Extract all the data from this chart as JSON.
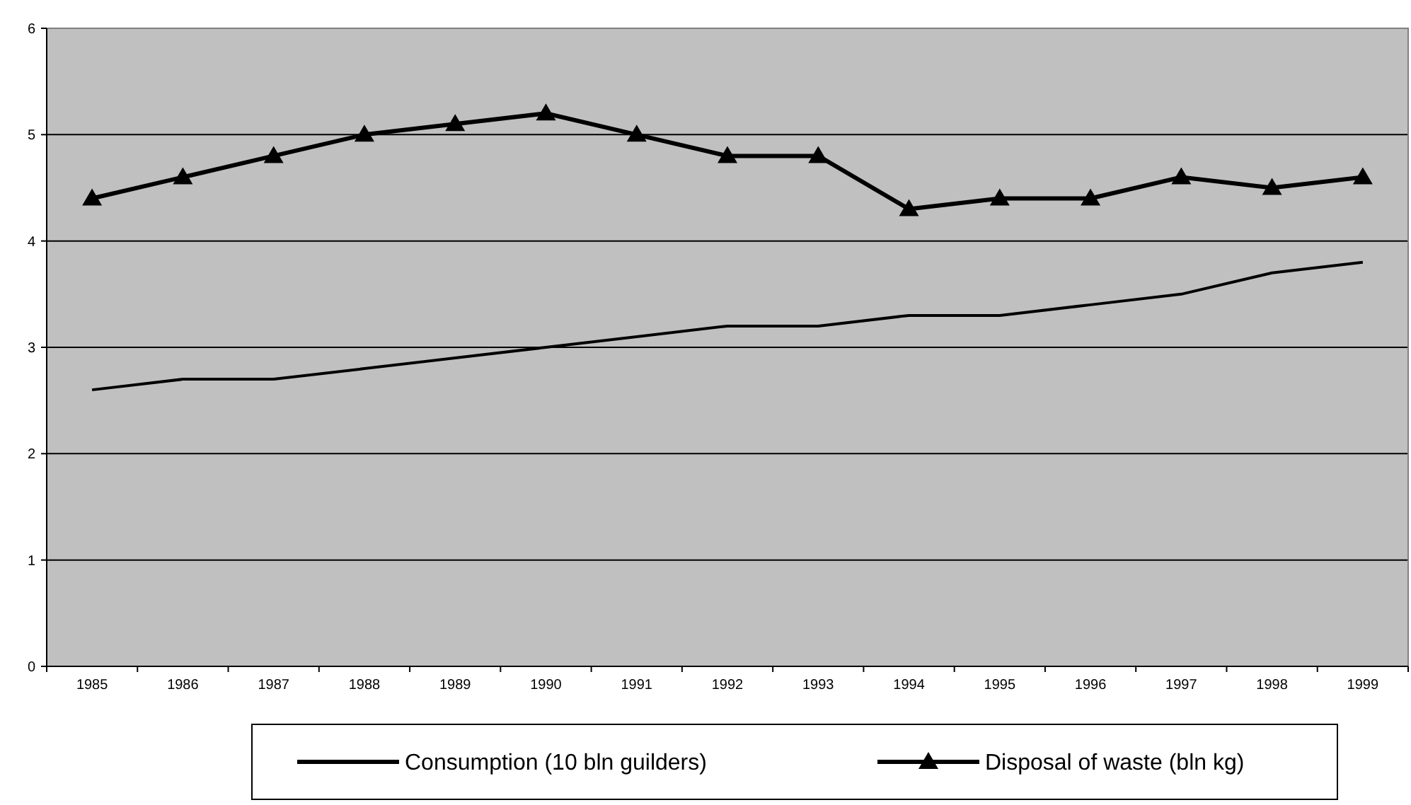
{
  "chart_data": {
    "type": "line",
    "categories": [
      "1985",
      "1986",
      "1987",
      "1988",
      "1989",
      "1990",
      "1991",
      "1992",
      "1993",
      "1994",
      "1995",
      "1996",
      "1997",
      "1998",
      "1999"
    ],
    "series": [
      {
        "name": "Consumption (10 bln guilders)",
        "color": "#000000",
        "marker": "none",
        "values": [
          2.6,
          2.7,
          2.7,
          2.8,
          2.9,
          3.0,
          3.1,
          3.2,
          3.2,
          3.3,
          3.3,
          3.4,
          3.5,
          3.7,
          3.8
        ]
      },
      {
        "name": "Disposal of waste (bln kg)",
        "color": "#000000",
        "marker": "triangle",
        "values": [
          4.4,
          4.6,
          4.8,
          5.0,
          5.1,
          5.2,
          5.0,
          4.8,
          4.8,
          4.3,
          4.4,
          4.4,
          4.6,
          4.5,
          4.6
        ]
      }
    ],
    "ylim": [
      0,
      6
    ],
    "yticks": [
      0,
      1,
      2,
      3,
      4,
      5,
      6
    ],
    "grid": "y",
    "legend": "bottom"
  }
}
